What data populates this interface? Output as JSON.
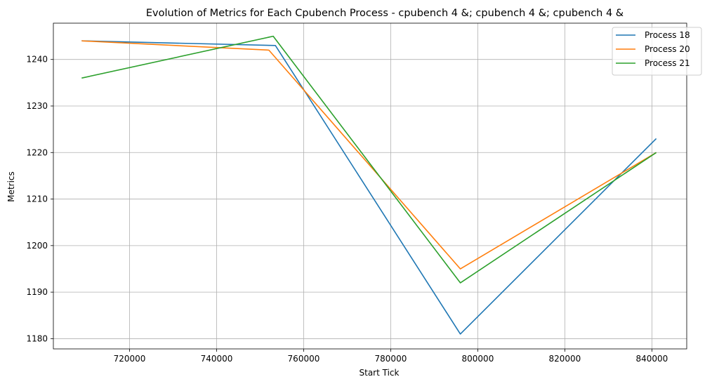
{
  "chart_data": {
    "type": "line",
    "title": "Evolution of Metrics for Each Cpubench Process - cpubench 4 &; cpubench 4 &; cpubench 4 &",
    "xlabel": "Start Tick",
    "ylabel": "Metrics",
    "xlim": [
      702500,
      848000
    ],
    "ylim": [
      1177.8,
      1247.8
    ],
    "xticks": [
      720000,
      740000,
      760000,
      780000,
      800000,
      820000,
      840000
    ],
    "yticks": [
      1180,
      1190,
      1200,
      1210,
      1220,
      1230,
      1240
    ],
    "grid": true,
    "legend_position": "top-right",
    "series": [
      {
        "name": "Process 18",
        "color": "#1f77b4",
        "points": [
          [
            709000,
            1244
          ],
          [
            753500,
            1243
          ],
          [
            796000,
            1181
          ],
          [
            841000,
            1223
          ]
        ]
      },
      {
        "name": "Process 20",
        "color": "#ff7f0e",
        "points": [
          [
            709000,
            1244
          ],
          [
            752000,
            1242
          ],
          [
            796000,
            1195
          ],
          [
            841000,
            1220
          ]
        ]
      },
      {
        "name": "Process 21",
        "color": "#2ca02c",
        "points": [
          [
            709000,
            1236
          ],
          [
            753000,
            1245
          ],
          [
            796000,
            1192
          ],
          [
            841000,
            1220
          ]
        ]
      }
    ]
  }
}
